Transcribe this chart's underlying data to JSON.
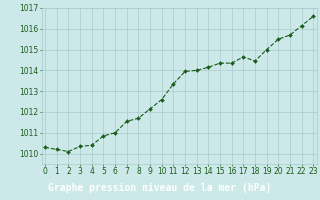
{
  "x": [
    0,
    1,
    2,
    3,
    4,
    5,
    6,
    7,
    8,
    9,
    10,
    11,
    12,
    13,
    14,
    15,
    16,
    17,
    18,
    19,
    20,
    21,
    22,
    23
  ],
  "y": [
    1010.3,
    1010.2,
    1010.1,
    1010.35,
    1010.4,
    1010.85,
    1011.0,
    1011.55,
    1011.7,
    1012.15,
    1012.6,
    1013.35,
    1013.95,
    1014.0,
    1014.15,
    1014.35,
    1014.35,
    1014.65,
    1014.45,
    1015.0,
    1015.5,
    1015.7,
    1016.15,
    1016.6
  ],
  "line_color": "#1a5c1a",
  "marker": "D",
  "marker_size": 2.0,
  "bg_color": "#cce8e8",
  "grid_color": "#aacccc",
  "footer_bg": "#2d7a2d",
  "xlabel": "Graphe pression niveau de la mer (hPa)",
  "xlabel_fontsize": 7,
  "xlabel_color": "#ffffff",
  "yticks": [
    1010,
    1011,
    1012,
    1013,
    1014,
    1015,
    1016,
    1017
  ],
  "xtick_labels": [
    "0",
    "1",
    "2",
    "3",
    "4",
    "5",
    "6",
    "7",
    "8",
    "9",
    "10",
    "11",
    "12",
    "13",
    "14",
    "15",
    "16",
    "17",
    "18",
    "19",
    "20",
    "21",
    "22",
    "23"
  ],
  "ylim": [
    1009.5,
    1017.0
  ],
  "xlim": [
    -0.3,
    23.3
  ],
  "tick_fontsize": 5.5,
  "tick_color": "#1a5c1a",
  "linewidth": 0.8
}
